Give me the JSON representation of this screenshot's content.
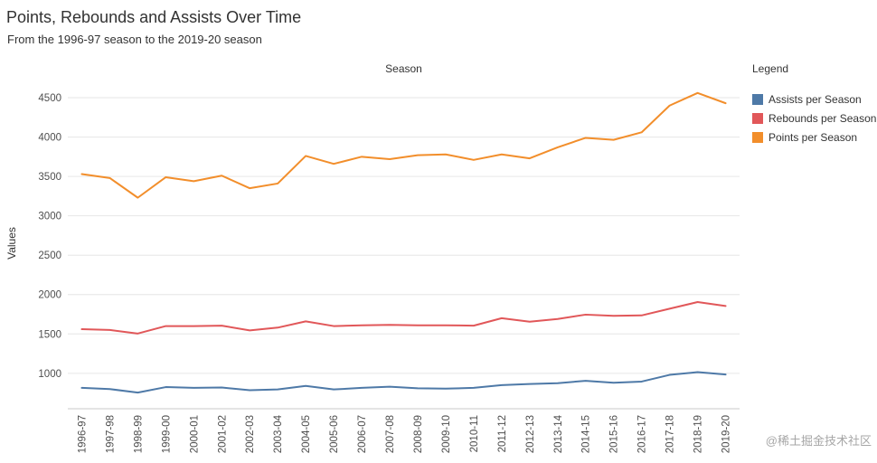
{
  "title": "Points, Rebounds and Assists Over Time",
  "subtitle": "From the 1996-97 season to the 2019-20 season",
  "legend": {
    "title": "Legend",
    "items": [
      {
        "label": "Assists per Season",
        "color": "#4e79a7"
      },
      {
        "label": "Rebounds per Season",
        "color": "#e15759"
      },
      {
        "label": "Points per Season",
        "color": "#f28e2b"
      }
    ]
  },
  "watermark": "@稀土掘金技术社区",
  "chart_data": {
    "type": "line",
    "title": "Points, Rebounds and Assists Over Time",
    "xlabel": "Season",
    "ylabel": "Values",
    "categories": [
      "1996-97",
      "1997-98",
      "1998-99",
      "1999-00",
      "2000-01",
      "2001-02",
      "2002-03",
      "2003-04",
      "2004-05",
      "2005-06",
      "2006-07",
      "2007-08",
      "2008-09",
      "2009-10",
      "2010-11",
      "2011-12",
      "2012-13",
      "2013-14",
      "2014-15",
      "2015-16",
      "2016-17",
      "2017-18",
      "2018-19",
      "2019-20"
    ],
    "series": [
      {
        "name": "Assists per Season",
        "color": "#4e79a7",
        "values": [
          815,
          800,
          755,
          825,
          815,
          820,
          785,
          795,
          840,
          795,
          815,
          830,
          810,
          805,
          815,
          850,
          865,
          875,
          905,
          880,
          895,
          980,
          1015,
          985
        ]
      },
      {
        "name": "Rebounds per Season",
        "color": "#e15759",
        "values": [
          1560,
          1550,
          1505,
          1600,
          1600,
          1605,
          1545,
          1580,
          1660,
          1600,
          1610,
          1615,
          1610,
          1610,
          1605,
          1700,
          1655,
          1690,
          1745,
          1730,
          1735,
          1820,
          1905,
          1855
        ]
      },
      {
        "name": "Points per Season",
        "color": "#f28e2b",
        "values": [
          3530,
          3480,
          3230,
          3490,
          3440,
          3510,
          3350,
          3410,
          3760,
          3660,
          3750,
          3720,
          3770,
          3780,
          3710,
          3780,
          3730,
          3870,
          3990,
          3965,
          4060,
          4400,
          4560,
          4430
        ]
      }
    ],
    "ylim": [
      550,
      4730
    ],
    "yticks": [
      1000,
      1500,
      2000,
      2500,
      3000,
      3500,
      4000,
      4500
    ],
    "grid": true,
    "legend_position": "right"
  }
}
